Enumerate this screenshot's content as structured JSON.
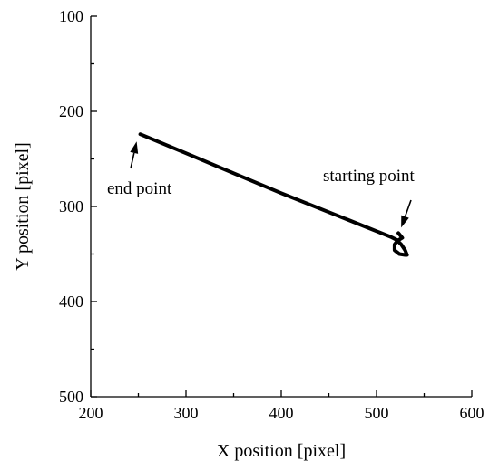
{
  "chart_data": {
    "type": "line",
    "title": "",
    "xlabel": "X position [pixel]",
    "ylabel": "Y position [pixel]",
    "xlim": [
      200,
      600
    ],
    "ylim": [
      100,
      500
    ],
    "y_inverted": true,
    "x_ticks": [
      200,
      300,
      400,
      500,
      600
    ],
    "y_ticks": [
      100,
      200,
      300,
      400,
      500
    ],
    "grid": false,
    "series": [
      {
        "x": [
          252,
          300,
          350,
          400,
          450,
          480,
          500,
          515,
          521,
          526,
          530,
          532,
          530,
          524,
          519,
          519,
          522,
          527,
          523
        ],
        "y": [
          224,
          244,
          265,
          286,
          306,
          318,
          326,
          332,
          335,
          340,
          346,
          351,
          351,
          350,
          346,
          340,
          336,
          333,
          328
        ]
      }
    ],
    "annotations": [
      {
        "text": "end point",
        "x": 252,
        "y": 224
      },
      {
        "text": "starting point",
        "x": 523,
        "y": 328
      }
    ]
  }
}
